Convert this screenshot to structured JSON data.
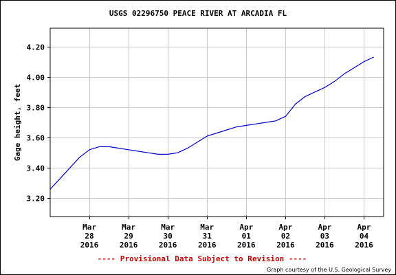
{
  "chart_data": {
    "type": "line",
    "title": "USGS 02296750 PEACE RIVER AT ARCADIA FL",
    "ylabel": "Gage height, feet",
    "xlabel": "",
    "ylim": [
      3.08,
      4.32
    ],
    "y_ticks": [
      "3.20",
      "3.40",
      "3.60",
      "3.80",
      "4.00",
      "4.20"
    ],
    "y_tick_values": [
      3.2,
      3.4,
      3.6,
      3.8,
      4.0,
      4.2
    ],
    "x_range_days": [
      "2016-03-27 12:00",
      "2016-04-05 00:00"
    ],
    "x_ticks": [
      {
        "line1": "Mar",
        "line2": "28",
        "line3": "2016",
        "date": "2016-03-28"
      },
      {
        "line1": "Mar",
        "line2": "29",
        "line3": "2016",
        "date": "2016-03-29"
      },
      {
        "line1": "Mar",
        "line2": "30",
        "line3": "2016",
        "date": "2016-03-30"
      },
      {
        "line1": "Mar",
        "line2": "31",
        "line3": "2016",
        "date": "2016-03-31"
      },
      {
        "line1": "Apr",
        "line2": "01",
        "line3": "2016",
        "date": "2016-04-01"
      },
      {
        "line1": "Apr",
        "line2": "02",
        "line3": "2016",
        "date": "2016-04-02"
      },
      {
        "line1": "Apr",
        "line2": "03",
        "line3": "2016",
        "date": "2016-04-03"
      },
      {
        "line1": "Apr",
        "line2": "04",
        "line3": "2016",
        "date": "2016-04-04"
      }
    ],
    "grid": true,
    "series": [
      {
        "color": "#0000cc",
        "points": [
          [
            "2016-03-27 12:00",
            3.26
          ],
          [
            "2016-03-27 18:00",
            3.33
          ],
          [
            "2016-03-28 00:00",
            3.4
          ],
          [
            "2016-03-28 06:00",
            3.47
          ],
          [
            "2016-03-28 12:00",
            3.52
          ],
          [
            "2016-03-28 18:00",
            3.54
          ],
          [
            "2016-03-29 00:00",
            3.54
          ],
          [
            "2016-03-29 06:00",
            3.53
          ],
          [
            "2016-03-29 12:00",
            3.52
          ],
          [
            "2016-03-29 18:00",
            3.51
          ],
          [
            "2016-03-30 00:00",
            3.5
          ],
          [
            "2016-03-30 06:00",
            3.49
          ],
          [
            "2016-03-30 12:00",
            3.49
          ],
          [
            "2016-03-30 18:00",
            3.5
          ],
          [
            "2016-03-31 00:00",
            3.53
          ],
          [
            "2016-03-31 06:00",
            3.57
          ],
          [
            "2016-03-31 12:00",
            3.61
          ],
          [
            "2016-03-31 18:00",
            3.63
          ],
          [
            "2016-04-01 00:00",
            3.65
          ],
          [
            "2016-04-01 06:00",
            3.67
          ],
          [
            "2016-04-01 12:00",
            3.68
          ],
          [
            "2016-04-01 18:00",
            3.69
          ],
          [
            "2016-04-02 00:00",
            3.7
          ],
          [
            "2016-04-02 06:00",
            3.71
          ],
          [
            "2016-04-02 12:00",
            3.74
          ],
          [
            "2016-04-02 18:00",
            3.82
          ],
          [
            "2016-04-03 00:00",
            3.87
          ],
          [
            "2016-04-03 06:00",
            3.9
          ],
          [
            "2016-04-03 12:00",
            3.93
          ],
          [
            "2016-04-03 18:00",
            3.97
          ],
          [
            "2016-04-04 00:00",
            4.02
          ],
          [
            "2016-04-04 06:00",
            4.06
          ],
          [
            "2016-04-04 12:00",
            4.1
          ],
          [
            "2016-04-04 18:00",
            4.13
          ]
        ]
      }
    ]
  },
  "footer": {
    "provisional": "---- Provisional Data Subject to Revision ----",
    "credit": "Graph courtesy of the U.S. Geological Survey"
  },
  "colors": {
    "line": "#0000cc",
    "grid": "#c8c8c8",
    "provisional": "#cc0000"
  }
}
